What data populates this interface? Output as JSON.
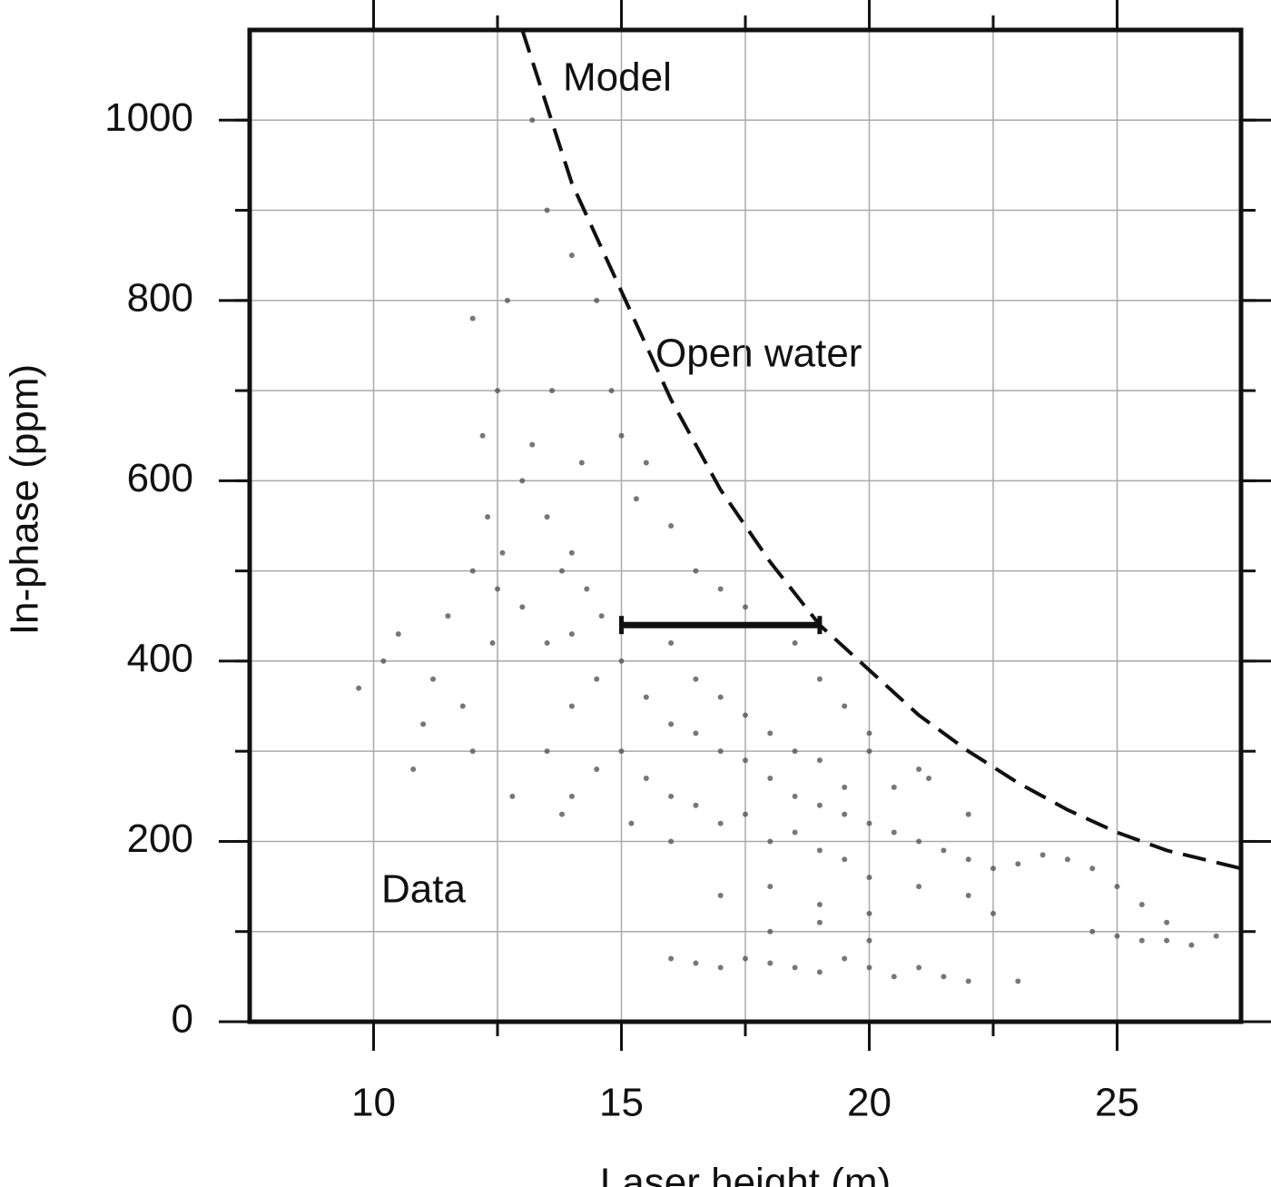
{
  "chart_data": {
    "type": "scatter",
    "x_label": "Laser height (m)",
    "y_label": "In-phase (ppm)",
    "xlim": [
      7.5,
      27.5
    ],
    "ylim": [
      0,
      1100
    ],
    "xticks": [
      10,
      15,
      20,
      25
    ],
    "yticks": [
      0,
      200,
      400,
      600,
      800,
      1000
    ],
    "xgrid": [
      10,
      12.5,
      15,
      17.5,
      20,
      22.5,
      25
    ],
    "ygrid": [
      100,
      200,
      300,
      400,
      500,
      600,
      700,
      800,
      900,
      1000
    ],
    "grid": true,
    "annotation": "Open water",
    "series": [
      {
        "name": "Data",
        "mode": "points",
        "color": "#555555",
        "x": [
          12.2,
          12.5,
          12.0,
          12.7,
          12.3,
          12.6,
          13.0,
          13.5,
          13.8,
          14.0,
          14.3,
          14.6,
          14.0,
          13.5,
          13.0,
          12.5,
          12.0,
          11.5,
          11.0,
          11.2,
          10.5,
          9.7,
          10.8,
          12.0,
          12.8,
          13.5,
          14.0,
          14.5,
          15.0,
          15.5,
          16.0,
          16.5,
          17.0,
          17.5,
          18.0,
          18.5,
          19.0,
          19.5,
          20.0,
          20.5,
          21.0,
          21.5,
          22.0,
          22.5,
          23.0,
          23.5,
          24.0,
          15.0,
          15.5,
          16.0,
          16.5,
          17.0,
          17.5,
          18.0,
          18.5,
          19.0,
          19.5,
          20.0,
          21.0,
          22.0,
          14.0,
          14.5,
          13.8,
          15.2,
          16.0,
          13.2,
          13.5,
          13.2,
          14.0,
          14.5,
          14.8,
          15.0,
          15.5,
          16.0,
          16.5,
          17.0,
          17.5,
          18.0,
          18.5,
          19.0,
          19.5,
          20.0,
          21.0,
          22.0,
          16.0,
          16.5,
          17.0,
          17.5,
          18.0,
          18.5,
          19.0,
          19.5,
          20.5,
          21.2,
          20.0,
          16.0,
          16.5,
          17.0,
          17.5,
          18.0,
          18.5,
          19.0,
          19.5,
          20.0,
          20.5,
          21.0,
          21.5,
          22.0,
          23.0,
          18.0,
          19.0,
          20.0,
          17.0,
          18.0,
          19.0,
          20.0,
          22.5,
          24.5,
          25.0,
          25.5,
          26.0,
          26.5,
          27.0,
          24.5,
          25.0,
          25.5,
          26.0,
          15.3,
          14.2,
          13.6,
          12.4,
          11.8,
          10.2
        ],
        "values": [
          650,
          700,
          780,
          800,
          560,
          520,
          600,
          560,
          500,
          520,
          480,
          450,
          430,
          420,
          460,
          480,
          500,
          450,
          330,
          380,
          430,
          370,
          280,
          300,
          250,
          300,
          350,
          380,
          400,
          360,
          330,
          320,
          300,
          290,
          270,
          250,
          240,
          230,
          220,
          210,
          200,
          190,
          180,
          170,
          175,
          185,
          180,
          300,
          270,
          250,
          240,
          220,
          230,
          200,
          210,
          190,
          180,
          160,
          150,
          140,
          250,
          280,
          230,
          220,
          200,
          640,
          900,
          1000,
          850,
          800,
          700,
          650,
          620,
          550,
          500,
          480,
          460,
          440,
          420,
          380,
          350,
          320,
          280,
          230,
          420,
          380,
          360,
          340,
          320,
          300,
          290,
          260,
          260,
          270,
          300,
          70,
          65,
          60,
          70,
          65,
          60,
          55,
          70,
          60,
          50,
          60,
          50,
          45,
          45,
          100,
          110,
          90,
          140,
          150,
          130,
          120,
          120,
          100,
          95,
          90,
          90,
          85,
          95,
          170,
          150,
          130,
          110,
          580,
          620,
          700,
          420,
          350,
          400
        ]
      },
      {
        "name": "Model",
        "mode": "dashed-line",
        "color": "#111111",
        "x": [
          13.0,
          14.0,
          15.0,
          16.0,
          17.0,
          18.0,
          19.0,
          20.0,
          21.0,
          22.0,
          23.0,
          24.0,
          25.0,
          26.0,
          27.5
        ],
        "values": [
          1100,
          930,
          810,
          690,
          590,
          510,
          440,
          390,
          340,
          300,
          265,
          235,
          210,
          190,
          170
        ]
      }
    ],
    "error_bar": {
      "y": 440,
      "x": [
        15,
        19
      ]
    }
  }
}
